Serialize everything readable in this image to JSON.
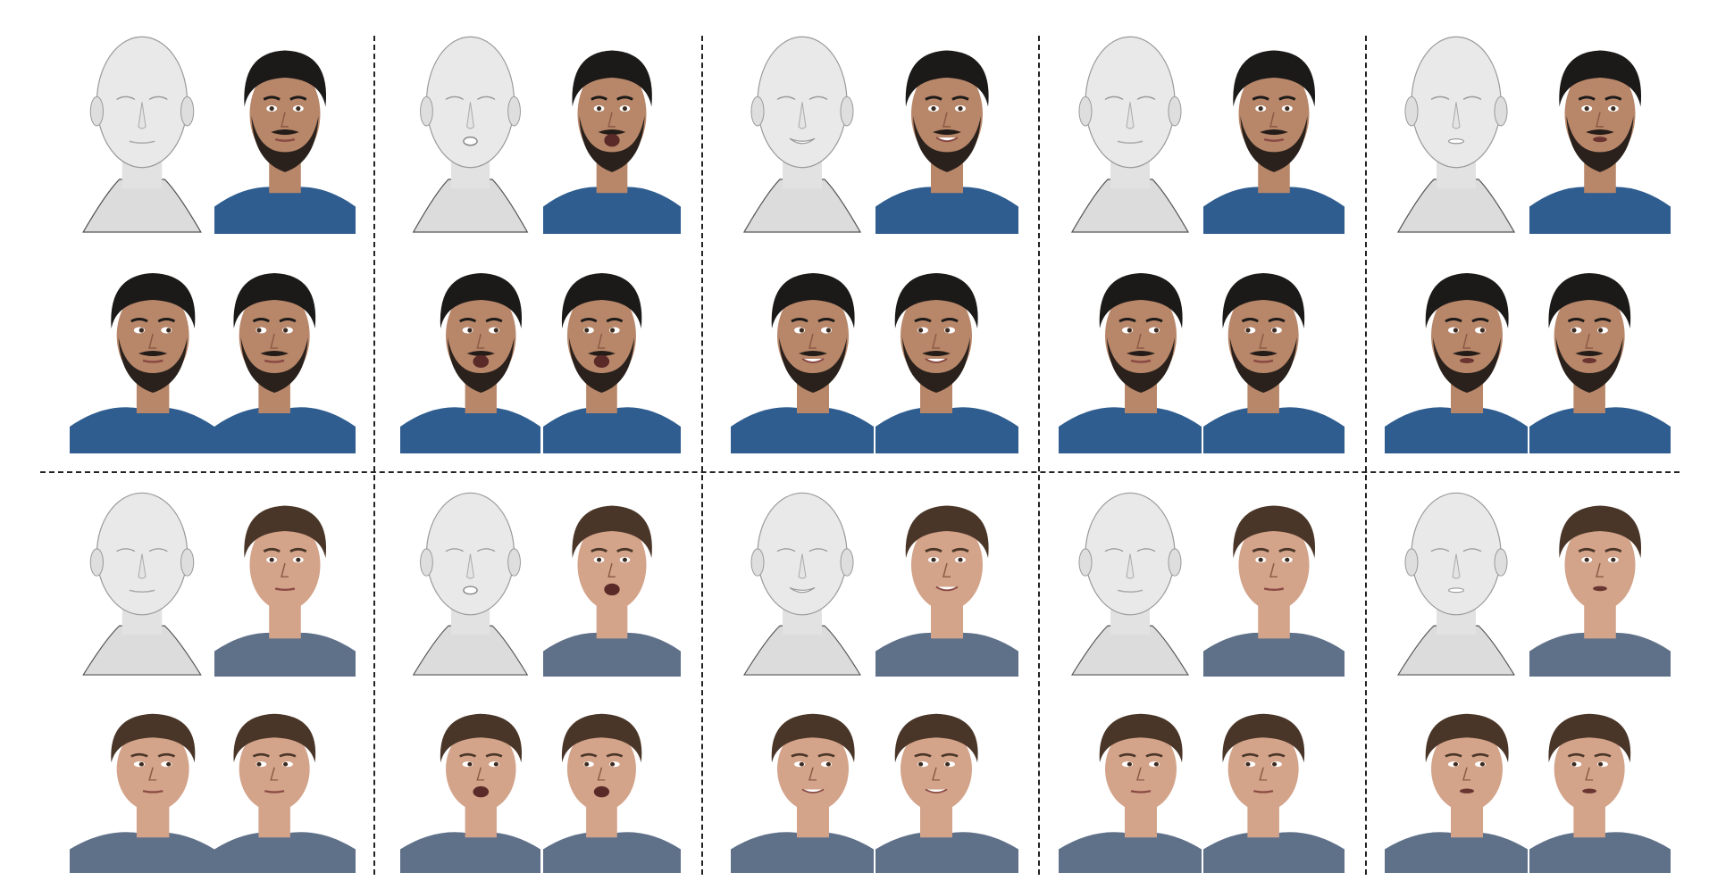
{
  "figure": {
    "kind": "grid of rendered head avatars (mesh + photo views)",
    "subjects": [
      {
        "label_visible": false,
        "hair_color": "#1c1a19",
        "skin_color": "#b8876a",
        "beard": true,
        "shirt_color": "#2f5d8f"
      },
      {
        "label_visible": false,
        "hair_color": "#4a3628",
        "skin_color": "#d3a38a",
        "beard": false,
        "shirt_color": "#5f7089"
      }
    ],
    "mesh_color": "#e9e9e9",
    "mouth_states": [
      "closed",
      "open",
      "smile",
      "closed",
      "slight-open"
    ],
    "separator_style": "dashed",
    "separator_color": "#222222"
  }
}
